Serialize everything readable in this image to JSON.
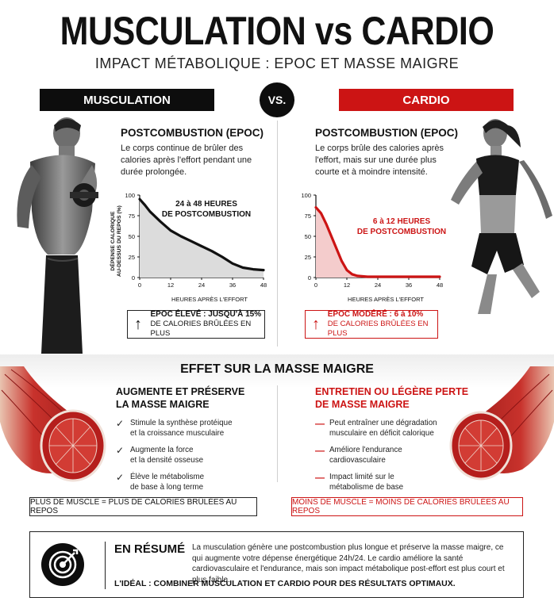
{
  "header": {
    "title": "MUSCULATION vs CARDIO",
    "subtitle": "IMPACT MÉTABOLIQUE : EPOC ET MASSE MAIGRE"
  },
  "banners": {
    "left": "MUSCULATION",
    "vs": "VS.",
    "right": "CARDIO"
  },
  "musculation": {
    "heading": "POSTCOMBUSTION (EPOC)",
    "text": "Le corps continue de brûler des calories après l'effort pendant une durée prolongée.",
    "annotation_line1": "24 à 48 HEURES",
    "annotation_line2": "DE POSTCOMBUSTION",
    "epoc_line1": "EPOC ÉLEVÉ : JUSQU'À 15%",
    "epoc_line2": "DE CALORIES BRÛLÉES EN PLUS"
  },
  "cardio": {
    "heading": "POSTCOMBUSTION (EPOC)",
    "text": "Le corps brûle des calories après l'effort, mais sur une durée plus courte et à moindre intensité.",
    "annotation_line1": "6 à 12 HEURES",
    "annotation_line2": "DE POSTCOMBUSTION",
    "epoc_line1": "EPOC MODÉRÉ : 6 à 10%",
    "epoc_line2": "DE CALORIES BRÛLÉES EN PLUS"
  },
  "chart_data": [
    {
      "type": "area",
      "ylabel": "DÉPENSE CALORIQUE AU-DESSUS DU REPOS (%)",
      "xlabel": "HEURES APRÈS L'EFFORT",
      "xticks": [
        0,
        12,
        24,
        36,
        48
      ],
      "yticks": [
        0,
        25,
        50,
        75,
        100
      ],
      "xlim": [
        0,
        48
      ],
      "ylim": [
        0,
        100
      ],
      "x": [
        0,
        2,
        4,
        8,
        12,
        16,
        20,
        24,
        28,
        32,
        36,
        40,
        44,
        48
      ],
      "y": [
        95,
        88,
        80,
        68,
        57,
        50,
        44,
        38,
        32,
        25,
        17,
        12,
        10,
        9
      ],
      "color": "#111111",
      "fill": "#dcdcdc"
    },
    {
      "type": "area",
      "ylabel": "",
      "xlabel": "HEURES APRÈS L'EFFORT",
      "xticks": [
        0,
        12,
        24,
        36,
        48
      ],
      "yticks": [
        0,
        25,
        50,
        75,
        100
      ],
      "xlim": [
        0,
        48
      ],
      "ylim": [
        0,
        100
      ],
      "x": [
        0,
        2,
        4,
        6,
        8,
        10,
        12,
        14,
        16,
        20,
        24,
        36,
        48
      ],
      "y": [
        85,
        78,
        65,
        50,
        35,
        20,
        9,
        4,
        2,
        1,
        1,
        1,
        1
      ],
      "color": "#cc1414",
      "fill": "#f4cccc"
    }
  ],
  "masse_maigre": {
    "section_title": "EFFET SUR LA MASSE MAIGRE",
    "left_heading_1": "AUGMENTE ET PRÉSERVE",
    "left_heading_2": "LA MASSE MAIGRE",
    "left_items": [
      {
        "line1": "Stimule la synthèse protéique",
        "line2": "et la croissance musculaire"
      },
      {
        "line1": "Augmente la force",
        "line2": "et la densité osseuse"
      },
      {
        "line1": "Élève le métabolisme",
        "line2": "de base à long terme"
      }
    ],
    "right_heading_1": "ENTRETIEN OU LÉGÈRE PERTE",
    "right_heading_2": "DE MASSE MAIGRE",
    "right_items": [
      {
        "line1": "Peut entraîner une dégradation",
        "line2": "musculaire en déficit calorique"
      },
      {
        "line1": "Améliore l'endurance",
        "line2": "cardiovasculaire"
      },
      {
        "line1": "Impact limité sur le",
        "line2": "métabolisme de base"
      }
    ],
    "left_rule": "PLUS DE MUSCLE = PLUS DE CALORIES BRÛLÉES AU REPOS",
    "right_rule": "MOINS DE MUSCLE = MOINS DE CALORIES BRÛLÉES AU REPOS"
  },
  "summary": {
    "title": "EN RÉSUMÉ",
    "text": "La musculation génère une postcombustion plus longue et préserve la masse maigre, ce qui augmente votre dépense énergétique 24h/24. Le cardio améliore la santé cardiovasculaire et l'endurance, mais son impact métabolique post-effort est plus court et plus faible.",
    "ideal": "L'IDÉAL : COMBINER MUSCULATION ET CARDIO POUR DES RÉSULTATS OPTIMAUX."
  },
  "colors": {
    "accent_red": "#cc1414",
    "dark": "#0d0d0d"
  }
}
